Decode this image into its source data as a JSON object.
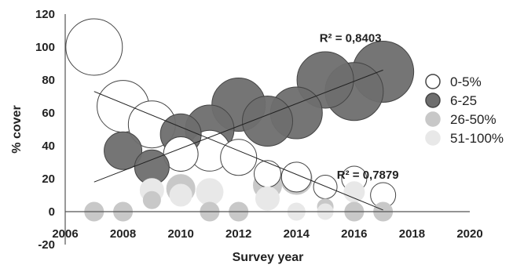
{
  "chart_data": {
    "type": "scatter",
    "subtype": "bubble",
    "xlabel": "Survey year",
    "ylabel": "% cover",
    "xlim": [
      2006,
      2020
    ],
    "ylim": [
      -20,
      120
    ],
    "x_ticks": [
      "2006",
      "2008",
      "2010",
      "2012",
      "2014",
      "2016",
      "2018",
      "2020"
    ],
    "y_ticks": [
      "-20",
      "0",
      "20",
      "40",
      "60",
      "80",
      "100",
      "120"
    ],
    "grid": false,
    "legend_position": "right",
    "series": [
      {
        "name": "0-5%",
        "fill": "#ffffff",
        "stroke": "#444444",
        "points": [
          {
            "x": 2007,
            "y": 100,
            "size": 36
          },
          {
            "x": 2008,
            "y": 64,
            "size": 33
          },
          {
            "x": 2009,
            "y": 53,
            "size": 30
          },
          {
            "x": 2010,
            "y": 35,
            "size": 22
          },
          {
            "x": 2011,
            "y": 37,
            "size": 26
          },
          {
            "x": 2012,
            "y": 33,
            "size": 23
          },
          {
            "x": 2013,
            "y": 23,
            "size": 17
          },
          {
            "x": 2014,
            "y": 21,
            "size": 19
          },
          {
            "x": 2015,
            "y": 15,
            "size": 15
          },
          {
            "x": 2016,
            "y": 20,
            "size": 16
          },
          {
            "x": 2017,
            "y": 10,
            "size": 16
          }
        ]
      },
      {
        "name": "6-25",
        "fill": "#6e6e6e",
        "stroke": "#444444",
        "points": [
          {
            "x": 2008,
            "y": 37,
            "size": 24
          },
          {
            "x": 2009,
            "y": 27,
            "size": 22
          },
          {
            "x": 2010,
            "y": 47,
            "size": 26
          },
          {
            "x": 2011,
            "y": 50,
            "size": 31
          },
          {
            "x": 2012,
            "y": 65,
            "size": 34
          },
          {
            "x": 2013,
            "y": 55,
            "size": 32
          },
          {
            "x": 2014,
            "y": 60,
            "size": 33
          },
          {
            "x": 2015,
            "y": 80,
            "size": 36
          },
          {
            "x": 2016,
            "y": 73,
            "size": 37
          },
          {
            "x": 2017,
            "y": 85,
            "size": 39
          }
        ]
      },
      {
        "name": "26-50%",
        "fill": "#c8c8c8",
        "stroke": "#c8c8c8",
        "points": [
          {
            "x": 2007,
            "y": 0,
            "size": 12
          },
          {
            "x": 2008,
            "y": 0,
            "size": 12
          },
          {
            "x": 2009,
            "y": 7,
            "size": 11
          },
          {
            "x": 2010,
            "y": 14,
            "size": 18
          },
          {
            "x": 2011,
            "y": 0,
            "size": 12
          },
          {
            "x": 2012,
            "y": 0,
            "size": 12
          },
          {
            "x": 2013,
            "y": 16,
            "size": 18
          },
          {
            "x": 2014,
            "y": 20,
            "size": 20
          },
          {
            "x": 2015,
            "y": 3,
            "size": 10
          },
          {
            "x": 2016,
            "y": 0,
            "size": 12
          },
          {
            "x": 2017,
            "y": 0,
            "size": 12
          }
        ]
      },
      {
        "name": "51-100%",
        "fill": "#e8e8e8",
        "stroke": "#e8e8e8",
        "points": [
          {
            "x": 2009,
            "y": 13,
            "size": 15
          },
          {
            "x": 2010,
            "y": 10,
            "size": 14
          },
          {
            "x": 2011,
            "y": 12,
            "size": 17
          },
          {
            "x": 2013,
            "y": 8,
            "size": 15
          },
          {
            "x": 2014,
            "y": 0,
            "size": 11
          },
          {
            "x": 2015,
            "y": 0,
            "size": 10
          },
          {
            "x": 2016,
            "y": 12,
            "size": 13
          }
        ]
      }
    ],
    "trendlines": [
      {
        "series": "6-25",
        "x": [
          2007,
          2017
        ],
        "y": [
          18,
          86
        ],
        "label": "R² = 0,8403"
      },
      {
        "series": "0-5%",
        "x": [
          2007,
          2017
        ],
        "y": [
          73,
          1
        ],
        "label": "R² = 0,7879"
      }
    ]
  }
}
